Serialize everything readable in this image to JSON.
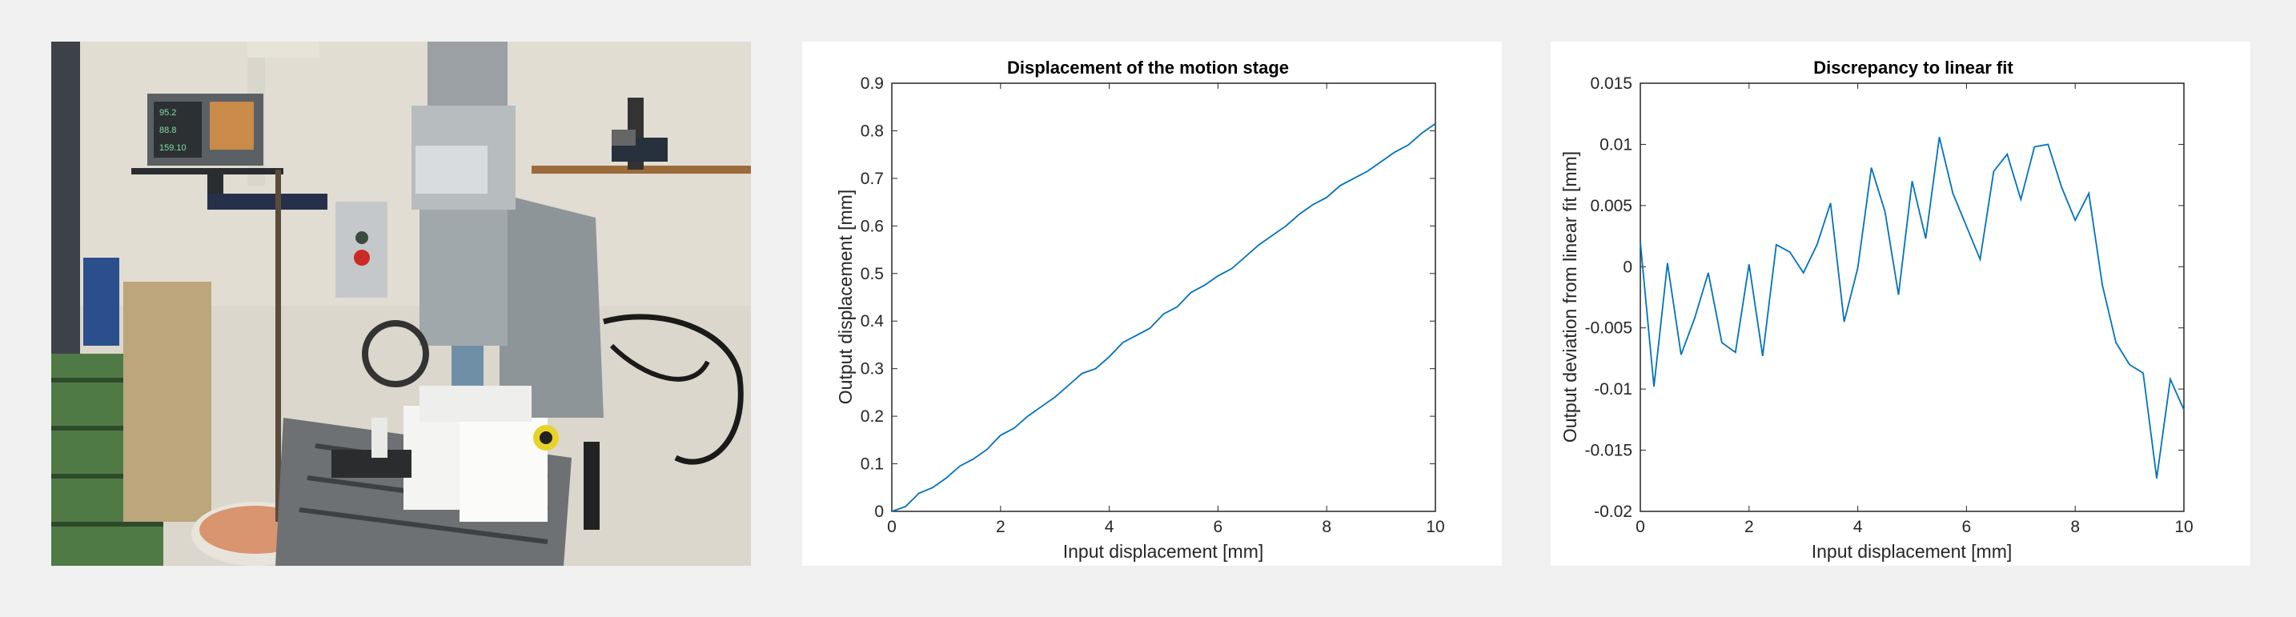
{
  "photo": {
    "description_icon": "milling-machine-photo-icon",
    "readout_values": [
      "95.2",
      "88.8",
      "159.10"
    ]
  },
  "chart_data": [
    {
      "type": "line",
      "title": "Displacement of the motion stage",
      "xlabel": "Input displacement [mm]",
      "ylabel": "Output displacement [mm]",
      "xlim": [
        0,
        10
      ],
      "ylim": [
        0,
        0.9
      ],
      "xticks": [
        0,
        2,
        4,
        6,
        8,
        10
      ],
      "yticks": [
        0,
        0.1,
        0.2,
        0.3,
        0.4,
        0.5,
        0.6,
        0.7,
        0.8,
        0.9
      ],
      "ytick_labels": [
        "0",
        "0.1",
        "0.2",
        "0.3",
        "0.4",
        "0.5",
        "0.6",
        "0.7",
        "0.8",
        "0.9"
      ],
      "grid": false,
      "color": "#0072bd",
      "series": [
        {
          "x": [
            0,
            0.25,
            0.5,
            0.75,
            1,
            1.25,
            1.5,
            1.75,
            2,
            2.25,
            2.5,
            2.75,
            3,
            3.25,
            3.5,
            3.75,
            4,
            4.25,
            4.5,
            4.75,
            5,
            5.25,
            5.5,
            5.75,
            6,
            6.25,
            6.5,
            6.75,
            7,
            7.25,
            7.5,
            7.75,
            8,
            8.25,
            8.5,
            8.75,
            9,
            9.25,
            9.5,
            9.75,
            10
          ],
          "y": [
            0,
            0.01,
            0.038,
            0.05,
            0.07,
            0.095,
            0.11,
            0.13,
            0.16,
            0.175,
            0.2,
            0.22,
            0.24,
            0.265,
            0.29,
            0.3,
            0.325,
            0.355,
            0.37,
            0.385,
            0.415,
            0.43,
            0.46,
            0.475,
            0.495,
            0.51,
            0.535,
            0.56,
            0.58,
            0.6,
            0.625,
            0.645,
            0.66,
            0.685,
            0.7,
            0.715,
            0.735,
            0.755,
            0.77,
            0.795,
            0.815
          ]
        }
      ]
    },
    {
      "type": "line",
      "title": "Discrepancy to linear fit",
      "xlabel": "Input displacement [mm]",
      "ylabel": "Output deviation from linear fit [mm]",
      "xlim": [
        0,
        10
      ],
      "ylim": [
        -0.02,
        0.015
      ],
      "xticks": [
        0,
        2,
        4,
        6,
        8,
        10
      ],
      "yticks": [
        -0.02,
        -0.015,
        -0.01,
        -0.005,
        0,
        0.005,
        0.01,
        0.015
      ],
      "ytick_labels": [
        "-0.02",
        "-0.015",
        "-0.01",
        "-0.005",
        "0",
        "0.005",
        "0.01",
        "0.015"
      ],
      "grid": false,
      "color": "#0072bd",
      "series": [
        {
          "x": [
            0,
            0.25,
            0.5,
            0.75,
            1,
            1.25,
            1.5,
            1.75,
            2,
            2.25,
            2.5,
            2.75,
            3,
            3.25,
            3.5,
            3.75,
            4,
            4.25,
            4.5,
            4.75,
            5,
            5.25,
            5.5,
            5.75,
            6,
            6.25,
            6.5,
            6.75,
            7,
            7.25,
            7.5,
            7.75,
            8,
            8.25,
            8.5,
            8.75,
            9,
            9.25,
            9.5,
            9.75,
            10
          ],
          "y": [
            0.002,
            -0.0098,
            0.0003,
            -0.0072,
            -0.0042,
            -0.0005,
            -0.0062,
            -0.007,
            0.0002,
            -0.0073,
            0.0018,
            0.0012,
            -0.0005,
            0.0018,
            0.0052,
            -0.0045,
            -0.0001,
            0.0081,
            0.0045,
            -0.0023,
            0.007,
            0.0023,
            0.0106,
            0.006,
            0.0033,
            0.0006,
            0.0078,
            0.0092,
            0.0055,
            0.0098,
            0.01,
            0.0065,
            0.0038,
            0.006,
            -0.0015,
            -0.0062,
            -0.008,
            -0.0087,
            -0.0173,
            -0.0092,
            -0.0117
          ]
        }
      ]
    }
  ]
}
